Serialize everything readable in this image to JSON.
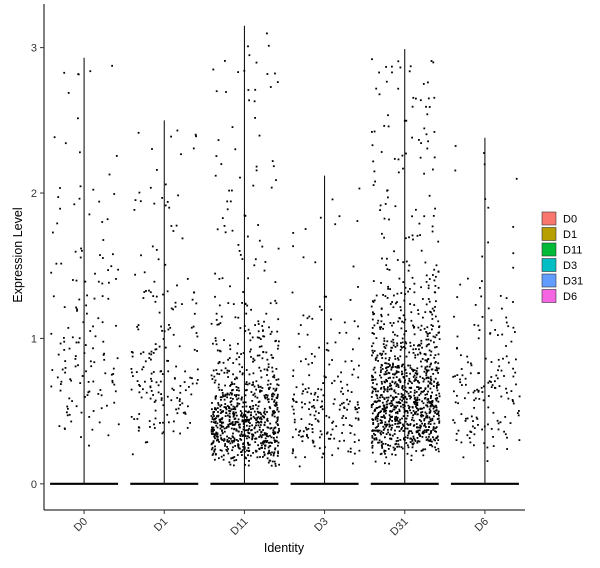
{
  "chart_data": {
    "type": "scatter",
    "subtype": "violin-jitter",
    "xlabel": "Identity",
    "ylabel": "Expression Level",
    "categories": [
      "D0",
      "D1",
      "D11",
      "D3",
      "D31",
      "D6"
    ],
    "ylim": [
      -0.18,
      3.3
    ],
    "yticks": [
      0,
      1,
      2,
      3
    ],
    "grid": false,
    "legend": {
      "placement": "right",
      "entries": [
        {
          "label": "D0",
          "color": "#F8766D"
        },
        {
          "label": "D1",
          "color": "#B79F00"
        },
        {
          "label": "D11",
          "color": "#00BA38"
        },
        {
          "label": "D3",
          "color": "#00BFC4"
        },
        {
          "label": "D31",
          "color": "#619CFF"
        },
        {
          "label": "D6",
          "color": "#F564E3"
        }
      ]
    },
    "series": [
      {
        "category": "D0",
        "max": 2.93,
        "zeros": 60,
        "nonzero_points": 150,
        "nonzero_median": 0.9
      },
      {
        "category": "D1",
        "max": 2.5,
        "zeros": 60,
        "nonzero_points": 190,
        "nonzero_median": 0.75
      },
      {
        "category": "D11",
        "max": 3.15,
        "zeros": 60,
        "nonzero_points": 850,
        "nonzero_median": 0.45
      },
      {
        "category": "D3",
        "max": 2.12,
        "zeros": 60,
        "nonzero_points": 210,
        "nonzero_median": 0.5
      },
      {
        "category": "D31",
        "max": 2.99,
        "zeros": 60,
        "nonzero_points": 1100,
        "nonzero_median": 0.62
      },
      {
        "category": "D6",
        "max": 2.38,
        "zeros": 60,
        "nonzero_points": 170,
        "nonzero_median": 0.6
      }
    ]
  }
}
